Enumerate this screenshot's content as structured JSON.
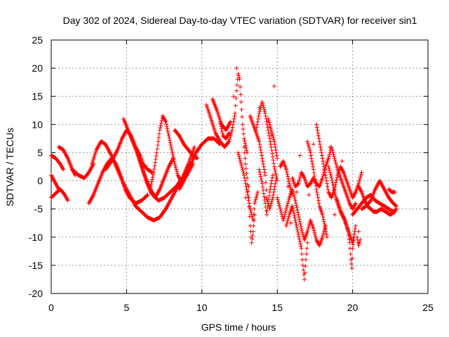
{
  "chart_data": {
    "type": "scatter",
    "title": "Day 302 of 2024, Sidereal Day-to-day VTEC variation (SDTVAR) for receiver sin1",
    "xlabel": "GPS time / hours",
    "ylabel": "SDTVAR / TECUs",
    "xlim": [
      0,
      25
    ],
    "ylim": [
      -20,
      25
    ],
    "xticks": [
      0,
      5,
      10,
      15,
      20,
      25
    ],
    "yticks": [
      -20,
      -15,
      -10,
      -5,
      0,
      5,
      10,
      15,
      20,
      25
    ],
    "xtick_labels": [
      "0",
      "5",
      "10",
      "15",
      "20",
      "25"
    ],
    "ytick_labels": [
      "-20",
      "-15",
      "-10",
      "-5",
      "0",
      "5",
      "10",
      "15",
      "20",
      "25"
    ],
    "grid": true,
    "marker": "+",
    "color": "#ff0000",
    "tracks": [
      [
        [
          0.0,
          4.5
        ],
        [
          0.3,
          4.0
        ],
        [
          0.6,
          3.0
        ],
        [
          0.8,
          2.0
        ]
      ],
      [
        [
          0.0,
          1.0
        ],
        [
          0.3,
          -0.5
        ],
        [
          0.5,
          -1.5
        ]
      ],
      [
        [
          0.0,
          -3.0
        ],
        [
          0.3,
          -2.2
        ],
        [
          0.6,
          -1.5
        ],
        [
          0.9,
          -2.5
        ],
        [
          1.1,
          -3.5
        ]
      ],
      [
        [
          0.5,
          6.0
        ],
        [
          0.8,
          5.5
        ],
        [
          1.1,
          4.0
        ],
        [
          1.4,
          2.0
        ],
        [
          1.6,
          1.0
        ]
      ],
      [
        [
          1.4,
          2.0
        ],
        [
          1.8,
          1.0
        ],
        [
          2.2,
          0.5
        ],
        [
          2.5,
          1.5
        ],
        [
          2.8,
          3.0
        ]
      ],
      [
        [
          2.5,
          -4.0
        ],
        [
          2.8,
          -2.5
        ],
        [
          3.1,
          -0.5
        ],
        [
          3.4,
          1.5
        ],
        [
          3.7,
          3.0
        ],
        [
          4.0,
          4.0
        ],
        [
          4.3,
          3.0
        ],
        [
          4.6,
          1.0
        ],
        [
          4.9,
          -1.5
        ],
        [
          5.2,
          -3.0
        ],
        [
          5.6,
          -4.0
        ],
        [
          6.0,
          -3.5
        ],
        [
          6.4,
          -2.5
        ]
      ],
      [
        [
          2.7,
          3.0
        ],
        [
          3.0,
          5.5
        ],
        [
          3.3,
          7.0
        ],
        [
          3.6,
          6.5
        ],
        [
          4.0,
          4.5
        ],
        [
          4.4,
          2.0
        ],
        [
          4.8,
          -0.5
        ],
        [
          5.2,
          -2.5
        ],
        [
          5.6,
          -4.5
        ],
        [
          6.0,
          -5.5
        ],
        [
          6.4,
          -6.5
        ],
        [
          6.8,
          -7.0
        ],
        [
          7.2,
          -6.5
        ],
        [
          7.6,
          -5.0
        ],
        [
          8.0,
          -3.0
        ],
        [
          8.4,
          -1.0
        ],
        [
          8.8,
          0.5
        ],
        [
          9.2,
          2.5
        ],
        [
          9.6,
          5.0
        ],
        [
          10.0,
          6.5
        ],
        [
          10.4,
          7.5
        ],
        [
          10.8,
          7.5
        ],
        [
          11.2,
          6.5
        ]
      ],
      [
        [
          3.6,
          2.0
        ],
        [
          4.0,
          3.5
        ],
        [
          4.4,
          5.5
        ],
        [
          4.7,
          7.5
        ],
        [
          5.0,
          9.0
        ],
        [
          5.3,
          8.0
        ],
        [
          5.6,
          6.0
        ],
        [
          5.9,
          3.5
        ],
        [
          6.2,
          1.0
        ],
        [
          6.5,
          -1.0
        ],
        [
          6.8,
          -2.5
        ],
        [
          7.1,
          -3.5
        ],
        [
          7.5,
          -3.0
        ],
        [
          7.9,
          -2.0
        ],
        [
          8.3,
          -1.0
        ],
        [
          8.7,
          0.5
        ],
        [
          9.1,
          3.0
        ],
        [
          9.5,
          6.0
        ]
      ],
      [
        [
          4.8,
          11.0
        ],
        [
          5.1,
          9.0
        ],
        [
          5.4,
          7.0
        ],
        [
          5.7,
          5.0
        ],
        [
          6.0,
          2.5
        ],
        [
          6.3,
          0.0
        ],
        [
          6.6,
          -2.0
        ],
        [
          6.9,
          -3.0
        ],
        [
          7.2,
          -1.5
        ],
        [
          7.5,
          0.5
        ],
        [
          7.8,
          2.5
        ],
        [
          8.1,
          4.0
        ]
      ],
      [
        [
          5.6,
          6.0
        ],
        [
          5.9,
          4.5
        ],
        [
          6.1,
          3.0
        ],
        [
          6.4,
          2.0
        ],
        [
          6.7,
          1.5
        ]
      ],
      [
        [
          6.6,
          -1.0
        ],
        [
          6.8,
          1.5
        ],
        [
          7.0,
          5.0
        ],
        [
          7.2,
          9.0
        ],
        [
          7.4,
          11.5
        ],
        [
          7.6,
          10.5
        ],
        [
          7.8,
          8.0
        ],
        [
          8.0,
          5.5
        ],
        [
          8.2,
          3.0
        ],
        [
          8.4,
          1.0
        ],
        [
          8.6,
          0.0
        ]
      ],
      [
        [
          8.2,
          9.0
        ],
        [
          8.5,
          8.0
        ],
        [
          8.8,
          6.5
        ],
        [
          9.1,
          5.5
        ],
        [
          9.4,
          4.5
        ],
        [
          9.7,
          4.0
        ]
      ],
      [
        [
          8.5,
          -1.5
        ],
        [
          8.8,
          0.0
        ],
        [
          9.1,
          1.5
        ],
        [
          9.4,
          3.0
        ]
      ],
      [
        [
          10.3,
          13.5
        ],
        [
          10.6,
          11.0
        ],
        [
          10.9,
          8.5
        ],
        [
          11.2,
          7.0
        ],
        [
          11.5,
          6.0
        ],
        [
          11.8,
          7.0
        ],
        [
          12.0,
          9.0
        ],
        [
          12.2,
          12.0
        ],
        [
          12.3,
          16.0
        ],
        [
          12.4,
          19.0
        ],
        [
          12.5,
          18.0
        ],
        [
          12.6,
          14.0
        ],
        [
          12.7,
          10.0
        ],
        [
          12.8,
          7.5
        ],
        [
          13.0,
          5.0
        ]
      ],
      [
        [
          10.7,
          14.5
        ],
        [
          11.0,
          12.5
        ],
        [
          11.3,
          10.0
        ],
        [
          11.6,
          9.0
        ],
        [
          11.9,
          10.5
        ]
      ],
      [
        [
          11.2,
          10.5
        ],
        [
          11.4,
          8.0
        ],
        [
          11.6,
          7.5
        ],
        [
          11.8,
          8.5
        ]
      ],
      [
        [
          12.4,
          5.0
        ],
        [
          12.6,
          3.0
        ],
        [
          12.8,
          1.0
        ],
        [
          13.0,
          -2.0
        ],
        [
          13.2,
          -5.0
        ],
        [
          13.4,
          -7.0
        ],
        [
          13.5,
          -4.0
        ],
        [
          13.7,
          -2.0
        ]
      ],
      [
        [
          12.8,
          6.0
        ],
        [
          12.9,
          3.0
        ],
        [
          13.0,
          0.5
        ],
        [
          13.1,
          -3.0
        ],
        [
          13.2,
          -8.0
        ],
        [
          13.3,
          -11.0
        ],
        [
          13.4,
          -9.0
        ],
        [
          13.5,
          -6.0
        ]
      ],
      [
        [
          13.2,
          11.5
        ],
        [
          13.4,
          10.0
        ],
        [
          13.6,
          8.5
        ],
        [
          13.8,
          7.0
        ],
        [
          14.0,
          4.0
        ],
        [
          14.2,
          1.0
        ],
        [
          14.3,
          -3.0
        ],
        [
          14.5,
          -5.0
        ],
        [
          14.7,
          -3.0
        ],
        [
          14.9,
          0.0
        ]
      ],
      [
        [
          13.6,
          9.0
        ],
        [
          13.8,
          12.0
        ],
        [
          14.0,
          14.0
        ],
        [
          14.2,
          12.0
        ],
        [
          14.4,
          9.0
        ],
        [
          14.6,
          6.0
        ],
        [
          14.8,
          2.5
        ],
        [
          15.0,
          0.0
        ]
      ],
      [
        [
          13.8,
          2.0
        ],
        [
          14.0,
          -0.5
        ],
        [
          14.2,
          -4.0
        ],
        [
          14.3,
          -6.0
        ],
        [
          14.5,
          -2.0
        ],
        [
          14.7,
          1.0
        ]
      ],
      [
        [
          14.4,
          11.0
        ],
        [
          14.6,
          9.0
        ],
        [
          14.8,
          7.0
        ],
        [
          15.0,
          4.0
        ]
      ],
      [
        [
          15.0,
          -3.0
        ],
        [
          15.2,
          -5.0
        ],
        [
          15.4,
          -7.0
        ],
        [
          15.6,
          -5.0
        ],
        [
          15.8,
          -3.0
        ],
        [
          16.0,
          -1.5
        ],
        [
          16.2,
          -3.5
        ],
        [
          16.4,
          -6.0
        ],
        [
          16.6,
          -8.5
        ],
        [
          16.8,
          -10.5
        ],
        [
          17.0,
          -9.0
        ],
        [
          17.2,
          -7.0
        ],
        [
          17.4,
          -8.5
        ],
        [
          17.6,
          -10.5
        ],
        [
          17.8,
          -11.5
        ],
        [
          18.0,
          -10.0
        ],
        [
          18.2,
          -8.0
        ]
      ],
      [
        [
          15.6,
          -8.0
        ],
        [
          15.8,
          -6.0
        ],
        [
          16.0,
          -4.5
        ],
        [
          16.2,
          -7.0
        ],
        [
          16.4,
          -9.5
        ],
        [
          16.6,
          -12.0
        ],
        [
          16.7,
          -15.0
        ],
        [
          16.8,
          -17.5
        ],
        [
          16.9,
          -14.0
        ],
        [
          17.0,
          -11.0
        ]
      ],
      [
        [
          15.2,
          2.5
        ],
        [
          15.4,
          3.5
        ],
        [
          15.6,
          2.0
        ],
        [
          15.8,
          -0.5
        ],
        [
          16.0,
          -2.5
        ]
      ],
      [
        [
          16.0,
          0.5
        ],
        [
          16.2,
          -1.0
        ],
        [
          16.4,
          -0.5
        ],
        [
          16.6,
          1.5
        ],
        [
          16.8,
          0.5
        ],
        [
          17.0,
          -1.0
        ],
        [
          17.2,
          -0.5
        ],
        [
          17.4,
          0.5
        ],
        [
          17.6,
          -0.5
        ],
        [
          17.8,
          -1.0
        ],
        [
          18.0,
          0.5
        ],
        [
          18.2,
          2.5
        ],
        [
          18.4,
          4.0
        ],
        [
          18.6,
          6.0
        ],
        [
          18.8,
          4.0
        ],
        [
          19.0,
          2.0
        ],
        [
          19.2,
          0.5
        ],
        [
          19.4,
          -1.0
        ],
        [
          19.6,
          -2.5
        ],
        [
          19.8,
          -4.0
        ],
        [
          20.0,
          -5.0
        ],
        [
          20.2,
          -4.0
        ]
      ],
      [
        [
          17.0,
          7.0
        ],
        [
          17.2,
          5.0
        ],
        [
          17.4,
          2.0
        ],
        [
          17.6,
          -1.5
        ],
        [
          17.8,
          -4.5
        ],
        [
          18.0,
          -6.0
        ],
        [
          18.2,
          -8.5
        ],
        [
          18.3,
          -10.0
        ]
      ],
      [
        [
          17.6,
          10.0
        ],
        [
          17.8,
          7.0
        ],
        [
          18.0,
          4.0
        ],
        [
          18.2,
          1.0
        ],
        [
          18.4,
          -2.0
        ],
        [
          18.6,
          -3.0
        ],
        [
          18.8,
          -1.5
        ],
        [
          19.0,
          1.0
        ],
        [
          19.2,
          2.5
        ],
        [
          19.4,
          1.5
        ],
        [
          19.6,
          0.0
        ],
        [
          19.8,
          -1.5
        ],
        [
          20.0,
          -3.0
        ],
        [
          20.2,
          -2.0
        ],
        [
          20.4,
          -0.5
        ],
        [
          20.6,
          1.5
        ]
      ],
      [
        [
          18.4,
          2.5
        ],
        [
          18.6,
          0.5
        ],
        [
          18.8,
          -2.0
        ],
        [
          19.0,
          -4.0
        ],
        [
          19.2,
          -5.5
        ],
        [
          19.4,
          -6.5
        ],
        [
          19.6,
          -8.0
        ],
        [
          19.8,
          -9.5
        ],
        [
          20.0,
          -11.0
        ],
        [
          20.1,
          -9.5
        ],
        [
          20.2,
          -8.0
        ]
      ],
      [
        [
          18.9,
          -3.0
        ],
        [
          19.1,
          -4.5
        ],
        [
          19.3,
          -6.0
        ],
        [
          19.5,
          -7.0
        ],
        [
          19.7,
          -9.0
        ],
        [
          19.8,
          -11.0
        ],
        [
          19.9,
          -14.0
        ],
        [
          19.95,
          -15.5
        ],
        [
          20.0,
          -12.0
        ],
        [
          20.1,
          -10.0
        ]
      ],
      [
        [
          20.3,
          -10.0
        ],
        [
          20.4,
          -11.5
        ],
        [
          20.5,
          -10.5
        ]
      ],
      [
        [
          20.0,
          -6.0
        ],
        [
          20.3,
          -5.0
        ],
        [
          20.6,
          -4.0
        ],
        [
          20.9,
          -3.0
        ],
        [
          21.2,
          -2.5
        ],
        [
          21.5,
          -3.5
        ],
        [
          21.8,
          -4.0
        ],
        [
          22.1,
          -4.5
        ],
        [
          22.4,
          -5.0
        ],
        [
          22.7,
          -5.5
        ],
        [
          22.9,
          -5.0
        ]
      ],
      [
        [
          20.6,
          -5.0
        ],
        [
          20.9,
          -4.5
        ],
        [
          21.2,
          -3.5
        ],
        [
          21.5,
          -1.5
        ],
        [
          21.8,
          0.0
        ],
        [
          22.1,
          -1.5
        ],
        [
          22.4,
          -3.0
        ],
        [
          22.7,
          -4.0
        ],
        [
          22.9,
          -4.5
        ]
      ],
      [
        [
          20.4,
          -1.0
        ],
        [
          20.6,
          -2.0
        ],
        [
          20.8,
          -3.5
        ],
        [
          21.0,
          -4.5
        ],
        [
          21.2,
          -5.0
        ],
        [
          21.4,
          -5.5
        ],
        [
          21.6,
          -5.5
        ],
        [
          21.9,
          -5.0
        ],
        [
          22.2,
          -5.5
        ],
        [
          22.5,
          -6.0
        ],
        [
          22.8,
          -5.5
        ]
      ],
      [
        [
          22.4,
          -1.5
        ],
        [
          22.6,
          -2.0
        ],
        [
          22.8,
          -2.0
        ]
      ]
    ],
    "scattered_points": [
      [
        12.3,
        20.0
      ],
      [
        14.8,
        16.8
      ],
      [
        15.3,
        3.0
      ],
      [
        16.3,
        -2.0
      ],
      [
        13.8,
        13.0
      ],
      [
        12.1,
        15.0
      ],
      [
        18.5,
        6.0
      ],
      [
        17.4,
        6.5
      ],
      [
        20.4,
        -9.0
      ],
      [
        16.5,
        4.5
      ],
      [
        15.7,
        -1.0
      ],
      [
        13.1,
        -1.0
      ],
      [
        14.6,
        8.0
      ],
      [
        17.1,
        -2.5
      ],
      [
        19.3,
        3.5
      ],
      [
        12.9,
        -3.0
      ],
      [
        15.9,
        -7.5
      ],
      [
        18.8,
        -6.0
      ]
    ]
  }
}
